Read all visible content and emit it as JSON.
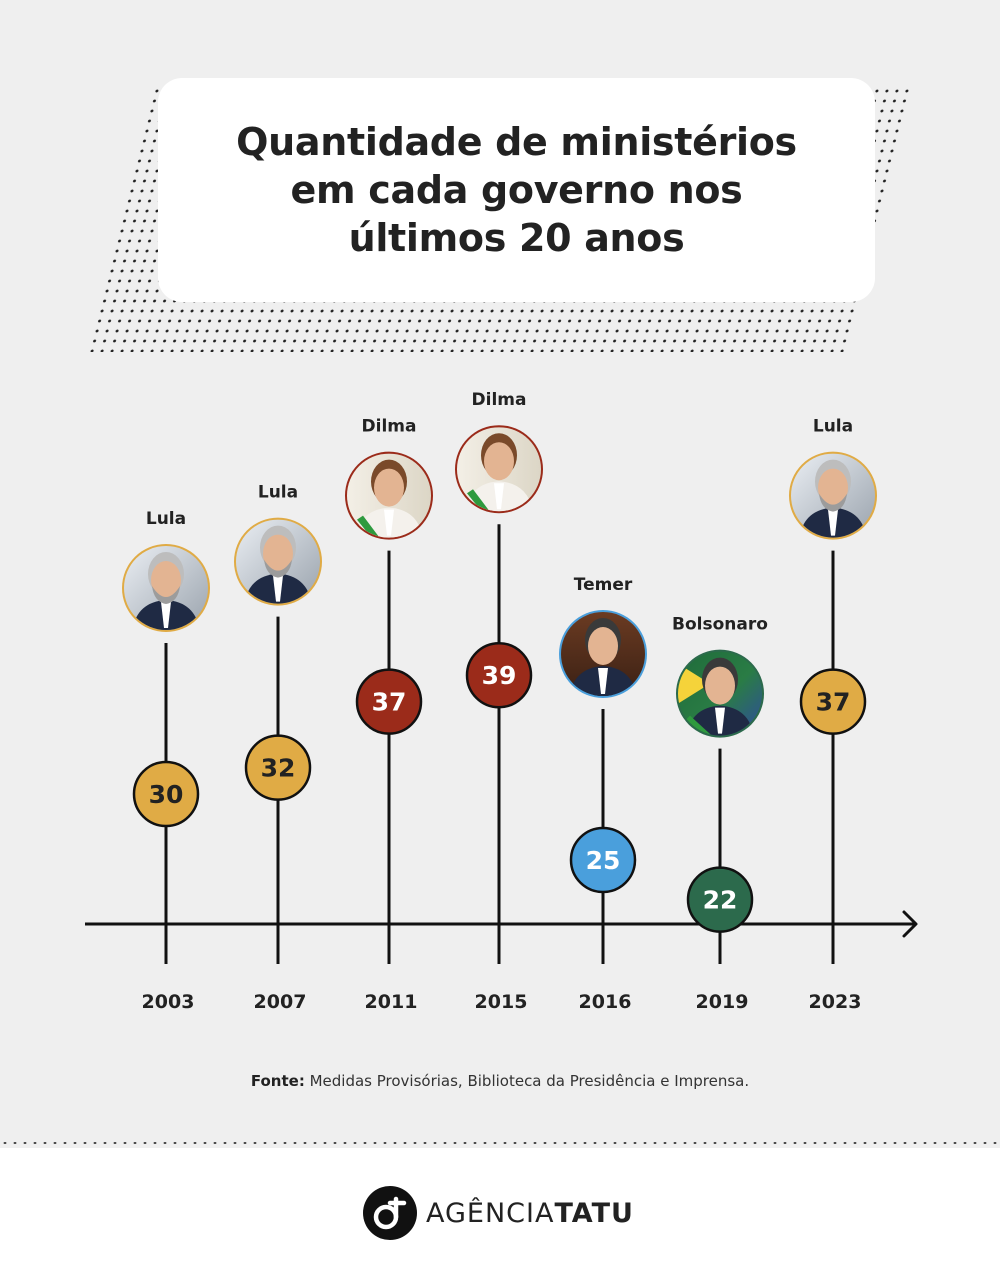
{
  "title": [
    "Quantidade de ministérios",
    "em cada governo nos",
    "últimos 20 anos"
  ],
  "colors": {
    "lula": "#e0ab45",
    "dilma": "#9b2b1a",
    "temer": "#4a9fdc",
    "bolsonaro": "#2c6a4c",
    "axis": "#111111"
  },
  "chart_data": {
    "type": "timeline",
    "x_label": "",
    "y_label": "",
    "points": [
      {
        "year": "2003",
        "president": "Lula",
        "ministries": 30,
        "color_key": "lula"
      },
      {
        "year": "2007",
        "president": "Lula",
        "ministries": 32,
        "color_key": "lula"
      },
      {
        "year": "2011",
        "president": "Dilma",
        "ministries": 37,
        "color_key": "dilma"
      },
      {
        "year": "2015",
        "president": "Dilma",
        "ministries": 39,
        "color_key": "dilma"
      },
      {
        "year": "2016",
        "president": "Temer",
        "ministries": 25,
        "color_key": "temer"
      },
      {
        "year": "2019",
        "president": "Bolsonaro",
        "ministries": 22,
        "color_key": "bolsonaro"
      },
      {
        "year": "2023",
        "president": "Lula",
        "ministries": 37,
        "color_key": "lula"
      }
    ]
  },
  "source": {
    "label": "Fonte:",
    "text": " Medidas Provisórias, Biblioteca da Presidência e Imprensa."
  },
  "brand": {
    "name_light": "AGÊNCIA",
    "name_bold": "TATU",
    "icon": "tatu-logo-icon"
  }
}
